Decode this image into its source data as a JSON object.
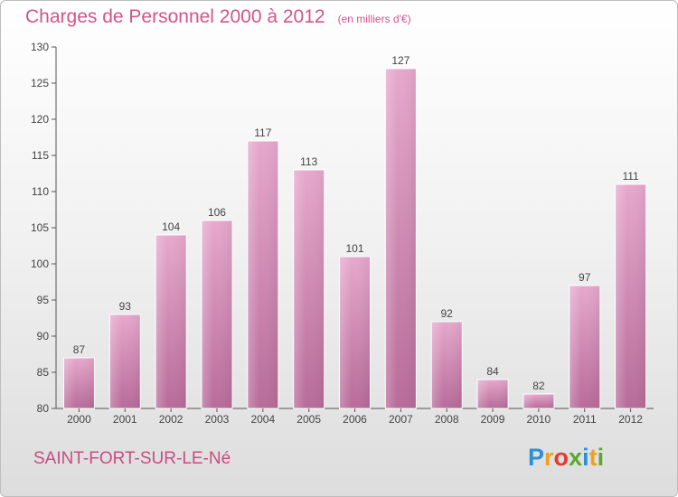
{
  "title": "Charges de Personnel 2000 à 2012",
  "subtitle": "(en milliers d'€)",
  "location": "SAINT-FORT-SUR-LE-Né",
  "logo": {
    "text": "Proxiti",
    "letters": [
      {
        "char": "P",
        "color": "#2f8fd6"
      },
      {
        "char": "r",
        "color": "#f0a020"
      },
      {
        "char": "o",
        "color": "#e53a2e"
      },
      {
        "char": "x",
        "color": "#5aa832"
      },
      {
        "char": "i",
        "color": "#2f8fd6"
      },
      {
        "char": "t",
        "color": "#f0a020"
      },
      {
        "char": "i",
        "color": "#5aa832"
      }
    ]
  },
  "colors": {
    "bar_light": "#e6a8cc",
    "bar_dark": "#b76b99",
    "title": "#d2548a",
    "axis": "#555555"
  },
  "chart_data": {
    "type": "bar",
    "title": "Charges de Personnel 2000 à 2012",
    "subtitle": "(en milliers d'€)",
    "categories": [
      "2000",
      "2001",
      "2002",
      "2003",
      "2004",
      "2005",
      "2006",
      "2007",
      "2008",
      "2009",
      "2010",
      "2011",
      "2012"
    ],
    "values": [
      87,
      93,
      104,
      106,
      117,
      113,
      101,
      127,
      92,
      84,
      82,
      97,
      111
    ],
    "ylim": [
      80,
      130
    ],
    "yticks": [
      80,
      85,
      90,
      95,
      100,
      105,
      110,
      115,
      120,
      125,
      130
    ],
    "grid": false,
    "legend": "none"
  }
}
